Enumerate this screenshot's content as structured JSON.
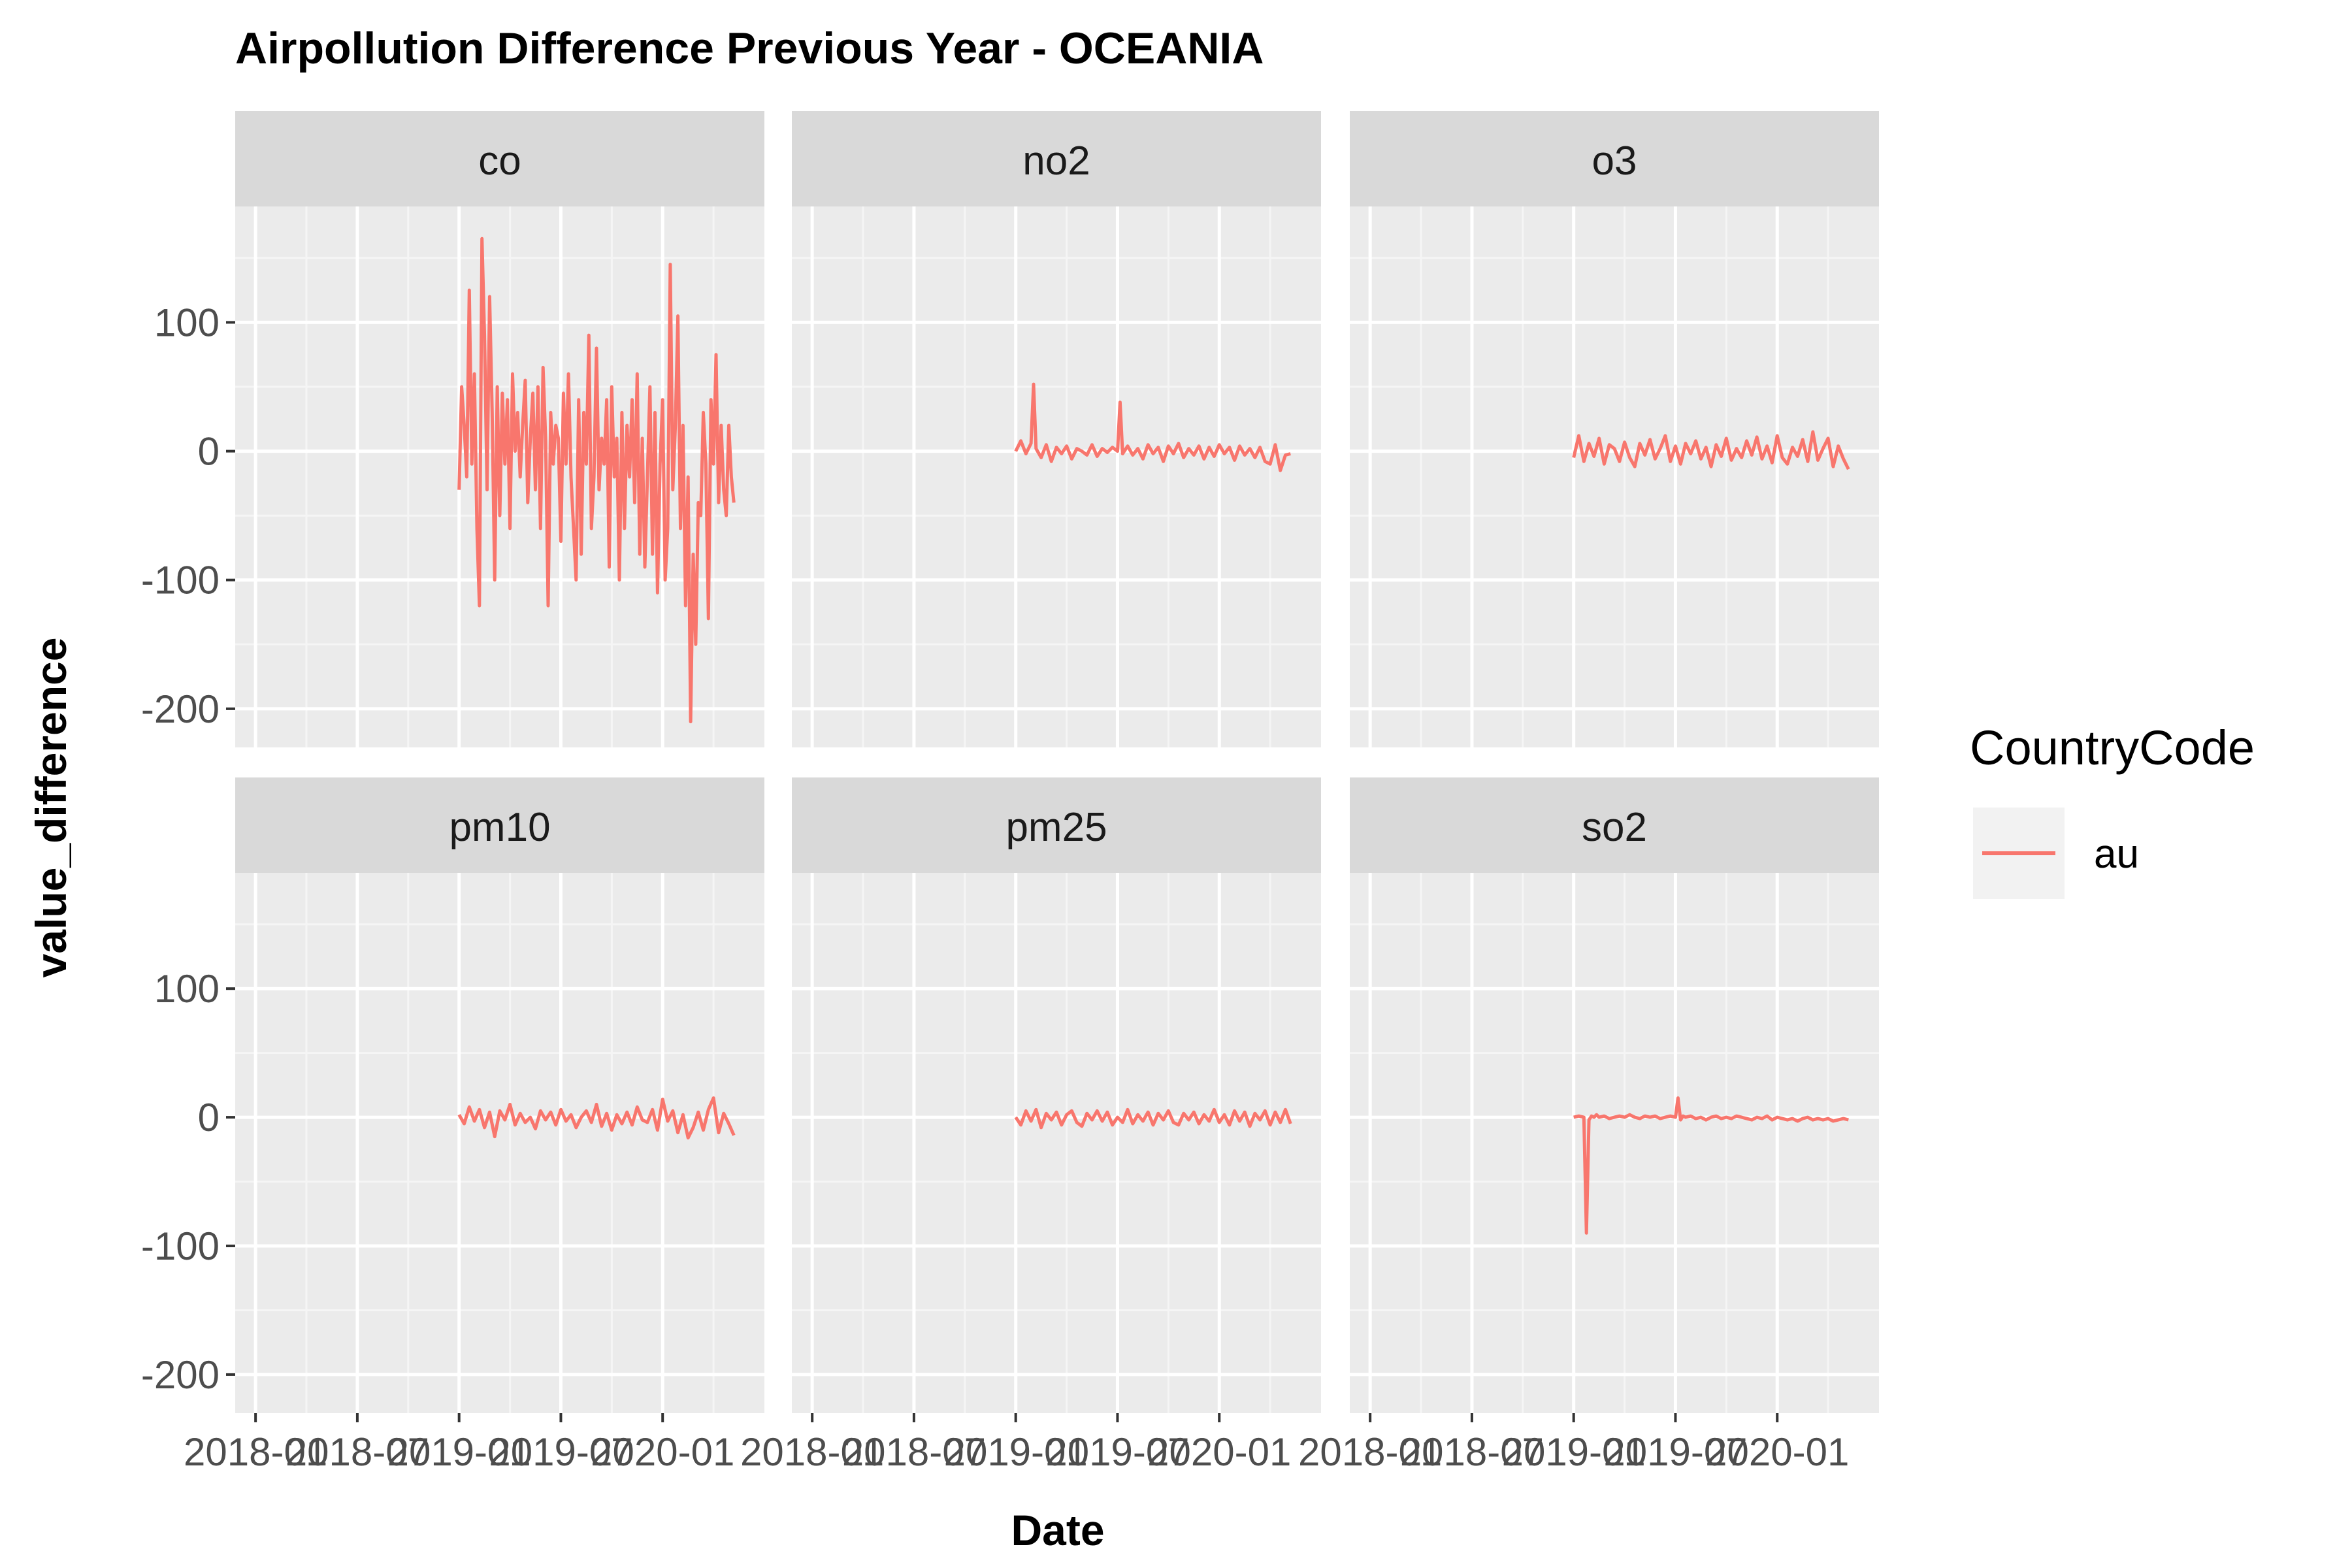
{
  "chart_data": {
    "type": "line",
    "title": "Airpollution Difference Previous Year - OCEANIA",
    "xlabel": "Date",
    "ylabel": "value_difference",
    "y_ticks": [
      "100",
      "0",
      "-100",
      "-200"
    ],
    "y_tick_values": [
      100,
      0,
      -100,
      -200
    ],
    "ylim": [
      -230,
      190
    ],
    "x_tick_labels": [
      "2018-01",
      "2018-07",
      "2019-01",
      "2019-07",
      "2020-01"
    ],
    "x_tick_values": [
      0,
      0.2,
      0.4,
      0.6,
      0.8
    ],
    "xlim": [
      -0.04,
      1.0
    ],
    "grid": true,
    "legend": {
      "title": "CountryCode",
      "entries": [
        "au"
      ],
      "position": "right"
    },
    "line_color": "#F8766D",
    "panel_strip_color": "#D9D9D9",
    "panel_bg_color": "#EBEBEB",
    "facets": [
      {
        "name": "co",
        "series": [
          {
            "name": "au",
            "x": [
              0.4,
              0.405,
              0.41,
              0.415,
              0.42,
              0.425,
              0.43,
              0.435,
              0.44,
              0.445,
              0.45,
              0.455,
              0.46,
              0.465,
              0.47,
              0.475,
              0.48,
              0.485,
              0.49,
              0.495,
              0.5,
              0.505,
              0.51,
              0.515,
              0.52,
              0.525,
              0.53,
              0.535,
              0.54,
              0.545,
              0.55,
              0.555,
              0.56,
              0.565,
              0.57,
              0.575,
              0.58,
              0.585,
              0.59,
              0.595,
              0.6,
              0.605,
              0.61,
              0.615,
              0.62,
              0.625,
              0.63,
              0.635,
              0.64,
              0.645,
              0.65,
              0.655,
              0.66,
              0.665,
              0.67,
              0.675,
              0.68,
              0.685,
              0.69,
              0.695,
              0.7,
              0.705,
              0.71,
              0.715,
              0.72,
              0.725,
              0.73,
              0.735,
              0.74,
              0.745,
              0.75,
              0.755,
              0.76,
              0.765,
              0.77,
              0.775,
              0.78,
              0.785,
              0.79,
              0.795,
              0.8,
              0.805,
              0.81,
              0.815,
              0.82,
              0.825,
              0.83,
              0.835,
              0.84,
              0.845,
              0.85,
              0.855,
              0.86,
              0.865,
              0.87,
              0.875,
              0.88,
              0.885,
              0.89,
              0.895,
              0.9,
              0.905,
              0.91,
              0.915,
              0.92,
              0.925,
              0.93,
              0.935,
              0.94
            ],
            "y": [
              -30,
              50,
              20,
              -20,
              125,
              -10,
              60,
              -60,
              -120,
              165,
              90,
              -30,
              120,
              30,
              -100,
              50,
              -50,
              45,
              -10,
              40,
              -60,
              60,
              0,
              30,
              -20,
              20,
              55,
              -40,
              10,
              45,
              -30,
              50,
              -60,
              65,
              10,
              -120,
              30,
              -10,
              20,
              10,
              -70,
              45,
              -10,
              60,
              -20,
              -60,
              -100,
              40,
              -80,
              30,
              -10,
              90,
              -60,
              -20,
              80,
              -30,
              10,
              -10,
              40,
              -90,
              50,
              -20,
              10,
              -100,
              30,
              -60,
              20,
              -20,
              40,
              -40,
              60,
              -80,
              10,
              -90,
              -20,
              50,
              -80,
              30,
              -110,
              -10,
              40,
              -100,
              -60,
              145,
              -30,
              20,
              105,
              -60,
              20,
              -120,
              -20,
              -210,
              -80,
              -150,
              -40,
              -50,
              30,
              -10,
              -130,
              40,
              -10,
              75,
              -40,
              20,
              -30,
              -50,
              20,
              -20,
              -40
            ]
          }
        ]
      },
      {
        "name": "no2",
        "series": [
          {
            "name": "au",
            "x": [
              0.4,
              0.41,
              0.42,
              0.43,
              0.435,
              0.44,
              0.45,
              0.46,
              0.47,
              0.48,
              0.49,
              0.5,
              0.51,
              0.52,
              0.53,
              0.54,
              0.55,
              0.56,
              0.57,
              0.58,
              0.59,
              0.6,
              0.605,
              0.61,
              0.62,
              0.63,
              0.64,
              0.65,
              0.66,
              0.67,
              0.68,
              0.69,
              0.7,
              0.71,
              0.72,
              0.73,
              0.74,
              0.75,
              0.76,
              0.77,
              0.78,
              0.79,
              0.8,
              0.81,
              0.82,
              0.83,
              0.84,
              0.85,
              0.86,
              0.87,
              0.88,
              0.89,
              0.9,
              0.91,
              0.92,
              0.93,
              0.94
            ],
            "y": [
              0,
              8,
              -2,
              6,
              52,
              2,
              -5,
              5,
              -8,
              3,
              -2,
              4,
              -6,
              2,
              0,
              -3,
              5,
              -4,
              2,
              -1,
              3,
              0,
              38,
              -2,
              4,
              -3,
              2,
              -6,
              5,
              -2,
              3,
              -8,
              4,
              -2,
              6,
              -5,
              2,
              -3,
              4,
              -6,
              3,
              -4,
              5,
              -2,
              3,
              -7,
              4,
              -3,
              2,
              -5,
              3,
              -8,
              -10,
              5,
              -15,
              -3,
              -2
            ]
          }
        ]
      },
      {
        "name": "o3",
        "series": [
          {
            "name": "au",
            "x": [
              0.4,
              0.41,
              0.42,
              0.43,
              0.44,
              0.45,
              0.46,
              0.47,
              0.48,
              0.49,
              0.5,
              0.51,
              0.52,
              0.53,
              0.54,
              0.55,
              0.56,
              0.57,
              0.58,
              0.59,
              0.6,
              0.61,
              0.62,
              0.63,
              0.64,
              0.65,
              0.66,
              0.67,
              0.68,
              0.69,
              0.7,
              0.71,
              0.72,
              0.73,
              0.74,
              0.75,
              0.76,
              0.77,
              0.78,
              0.79,
              0.8,
              0.81,
              0.82,
              0.83,
              0.84,
              0.85,
              0.86,
              0.87,
              0.88,
              0.89,
              0.9,
              0.91,
              0.92,
              0.93,
              0.94
            ],
            "y": [
              -5,
              12,
              -8,
              6,
              -4,
              10,
              -10,
              5,
              2,
              -8,
              7,
              -5,
              -12,
              6,
              -3,
              9,
              -6,
              2,
              12,
              -8,
              4,
              -10,
              6,
              -2,
              8,
              -6,
              3,
              -12,
              5,
              -4,
              10,
              -7,
              2,
              -5,
              8,
              -3,
              11,
              -6,
              4,
              -9,
              12,
              -5,
              -10,
              3,
              -4,
              9,
              -8,
              15,
              -7,
              2,
              10,
              -12,
              4,
              -6,
              -14
            ]
          }
        ]
      },
      {
        "name": "pm10",
        "series": [
          {
            "name": "au",
            "x": [
              0.4,
              0.41,
              0.42,
              0.43,
              0.44,
              0.45,
              0.46,
              0.47,
              0.48,
              0.49,
              0.5,
              0.51,
              0.52,
              0.53,
              0.54,
              0.55,
              0.56,
              0.57,
              0.58,
              0.59,
              0.6,
              0.61,
              0.62,
              0.63,
              0.64,
              0.65,
              0.66,
              0.67,
              0.68,
              0.69,
              0.7,
              0.71,
              0.72,
              0.73,
              0.74,
              0.75,
              0.76,
              0.77,
              0.78,
              0.79,
              0.8,
              0.81,
              0.82,
              0.83,
              0.84,
              0.85,
              0.86,
              0.87,
              0.88,
              0.89,
              0.9,
              0.91,
              0.92,
              0.93,
              0.94
            ],
            "y": [
              2,
              -5,
              8,
              -3,
              6,
              -8,
              4,
              -15,
              5,
              -2,
              10,
              -6,
              3,
              -4,
              0,
              -9,
              5,
              -2,
              4,
              -6,
              6,
              -3,
              2,
              -8,
              0,
              5,
              -4,
              10,
              -7,
              3,
              -10,
              2,
              -5,
              4,
              -6,
              8,
              -2,
              -4,
              6,
              -10,
              14,
              -3,
              5,
              -12,
              2,
              -16,
              -8,
              4,
              -10,
              6,
              15,
              -12,
              3,
              -5,
              -14
            ]
          }
        ]
      },
      {
        "name": "pm25",
        "series": [
          {
            "name": "au",
            "x": [
              0.4,
              0.41,
              0.42,
              0.43,
              0.44,
              0.45,
              0.46,
              0.47,
              0.48,
              0.49,
              0.5,
              0.51,
              0.52,
              0.53,
              0.54,
              0.55,
              0.56,
              0.57,
              0.58,
              0.59,
              0.6,
              0.61,
              0.62,
              0.63,
              0.64,
              0.65,
              0.66,
              0.67,
              0.68,
              0.69,
              0.7,
              0.71,
              0.72,
              0.73,
              0.74,
              0.75,
              0.76,
              0.77,
              0.78,
              0.79,
              0.8,
              0.81,
              0.82,
              0.83,
              0.84,
              0.85,
              0.86,
              0.87,
              0.88,
              0.89,
              0.9,
              0.91,
              0.92,
              0.93,
              0.94
            ],
            "y": [
              0,
              -6,
              5,
              -3,
              6,
              -8,
              3,
              -2,
              4,
              -6,
              2,
              5,
              -4,
              -7,
              3,
              -2,
              5,
              -3,
              4,
              -6,
              0,
              -4,
              6,
              -5,
              2,
              -3,
              4,
              -6,
              3,
              -2,
              5,
              -4,
              -6,
              3,
              -2,
              4,
              -5,
              2,
              -3,
              6,
              -4,
              2,
              -6,
              5,
              -3,
              4,
              -7,
              3,
              -2,
              5,
              -6,
              4,
              -4,
              6,
              -5
            ]
          }
        ]
      },
      {
        "name": "so2",
        "series": [
          {
            "name": "au",
            "x": [
              0.4,
              0.41,
              0.42,
              0.425,
              0.43,
              0.435,
              0.44,
              0.445,
              0.45,
              0.46,
              0.47,
              0.48,
              0.49,
              0.5,
              0.51,
              0.52,
              0.53,
              0.54,
              0.55,
              0.56,
              0.57,
              0.58,
              0.59,
              0.6,
              0.605,
              0.61,
              0.615,
              0.62,
              0.63,
              0.64,
              0.65,
              0.66,
              0.67,
              0.68,
              0.69,
              0.7,
              0.71,
              0.72,
              0.73,
              0.74,
              0.75,
              0.76,
              0.77,
              0.78,
              0.79,
              0.8,
              0.81,
              0.82,
              0.83,
              0.84,
              0.85,
              0.86,
              0.87,
              0.88,
              0.89,
              0.9,
              0.91,
              0.92,
              0.93,
              0.94
            ],
            "y": [
              0,
              1,
              0,
              -90,
              -2,
              1,
              0,
              2,
              0,
              1,
              -1,
              0,
              1,
              0,
              2,
              0,
              -1,
              1,
              0,
              1,
              -1,
              0,
              1,
              0,
              15,
              -2,
              1,
              0,
              1,
              -1,
              0,
              -2,
              0,
              1,
              -1,
              0,
              -1,
              1,
              0,
              -1,
              -2,
              0,
              -1,
              1,
              -2,
              0,
              -1,
              -2,
              -1,
              -3,
              -1,
              0,
              -2,
              -1,
              -2,
              -1,
              -3,
              -2,
              -1,
              -2
            ]
          }
        ]
      }
    ]
  }
}
